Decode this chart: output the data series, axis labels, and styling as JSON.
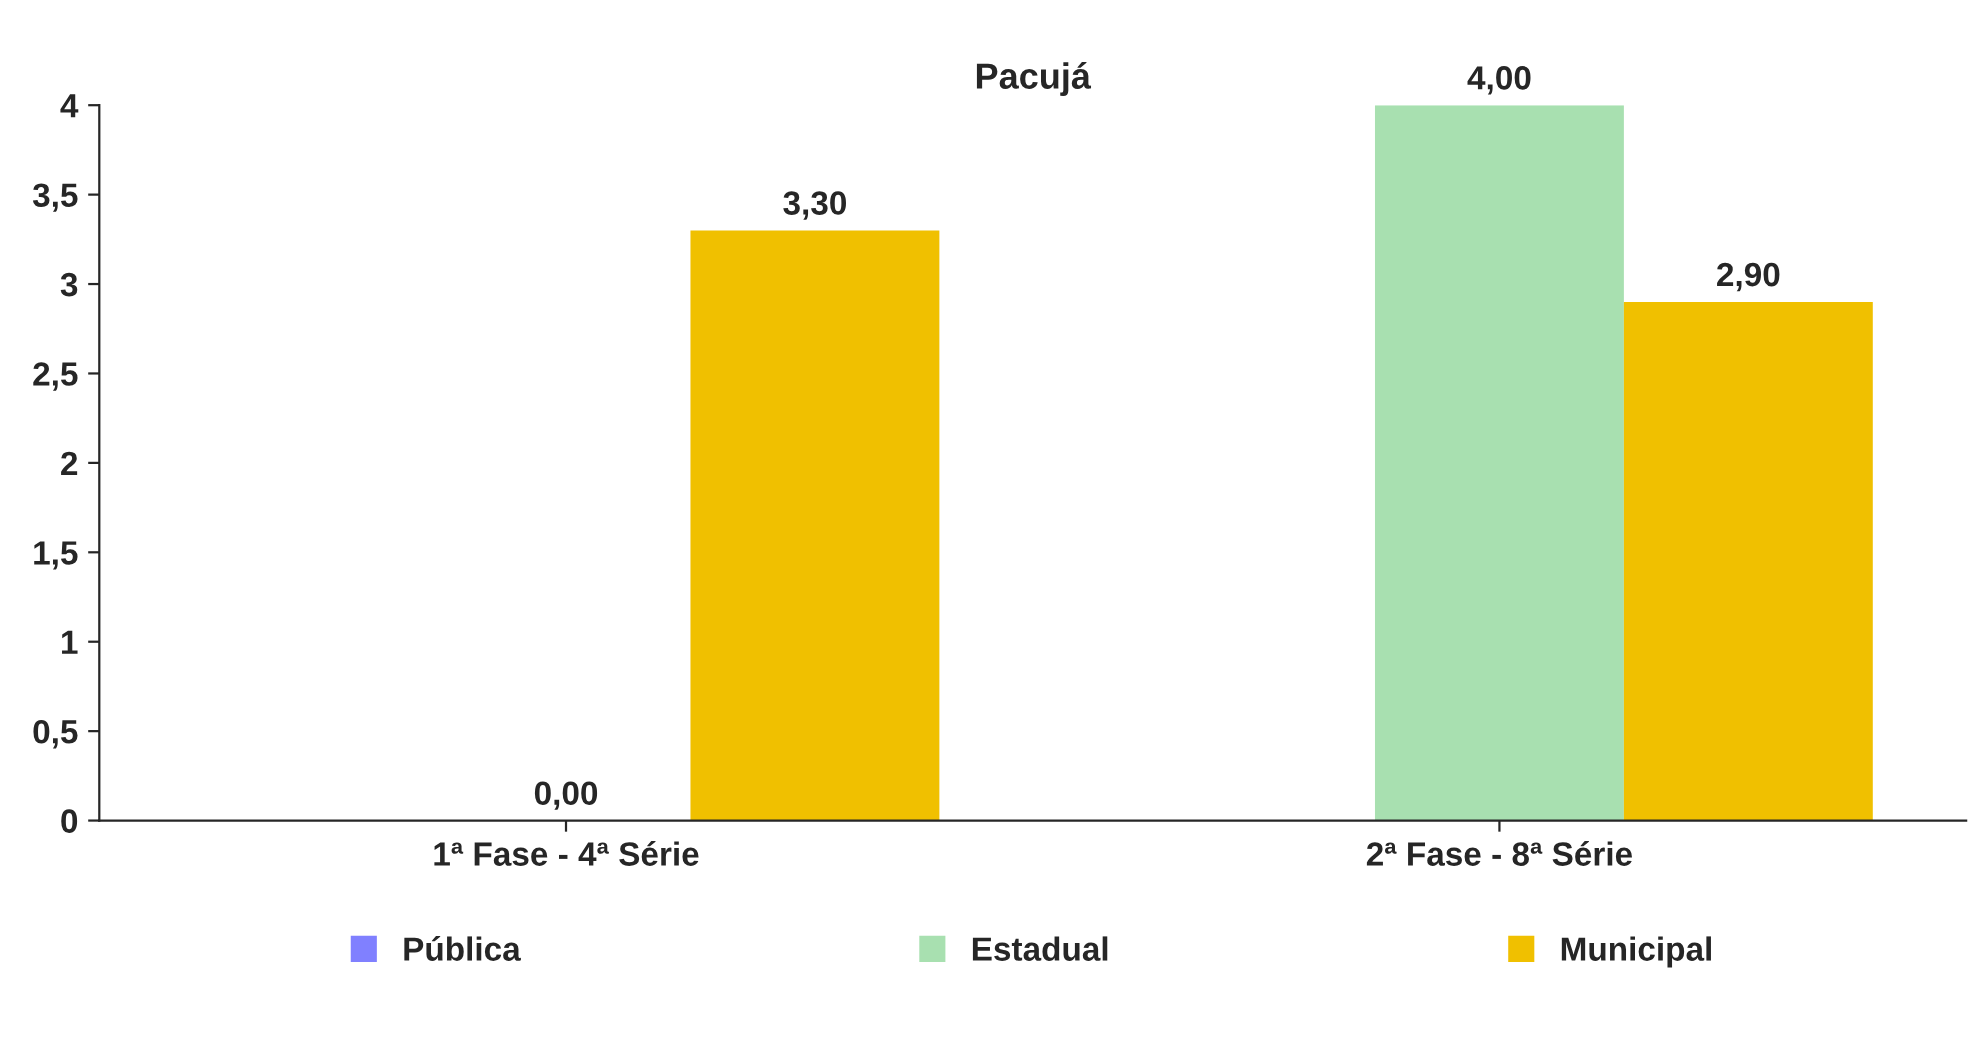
{
  "chart_data": {
    "type": "bar",
    "title": "Pacujá",
    "categories": [
      "1ª Fase - 4ª Série",
      "2ª Fase - 8ª Série"
    ],
    "series": [
      {
        "name": "Pública",
        "color": "#8080ff",
        "values": [
          null,
          null
        ]
      },
      {
        "name": "Estadual",
        "color": "#a8e0b0",
        "values": [
          0.0,
          4.0
        ],
        "value_labels": [
          "0,00",
          "4,00"
        ]
      },
      {
        "name": "Municipal",
        "color": "#f0c000",
        "values": [
          3.3,
          2.9
        ],
        "value_labels": [
          "3,30",
          "2,90"
        ]
      }
    ],
    "ylim": [
      0,
      4
    ],
    "yticks": [
      0,
      {
        "value": 0.5,
        "label": "0,5"
      },
      1,
      {
        "value": 1.5,
        "label": "1,5"
      },
      2,
      {
        "value": 2.5,
        "label": "2,5"
      },
      3,
      {
        "value": 3.5,
        "label": "3,5"
      },
      4
    ],
    "grid": false,
    "legend": "bottom"
  }
}
